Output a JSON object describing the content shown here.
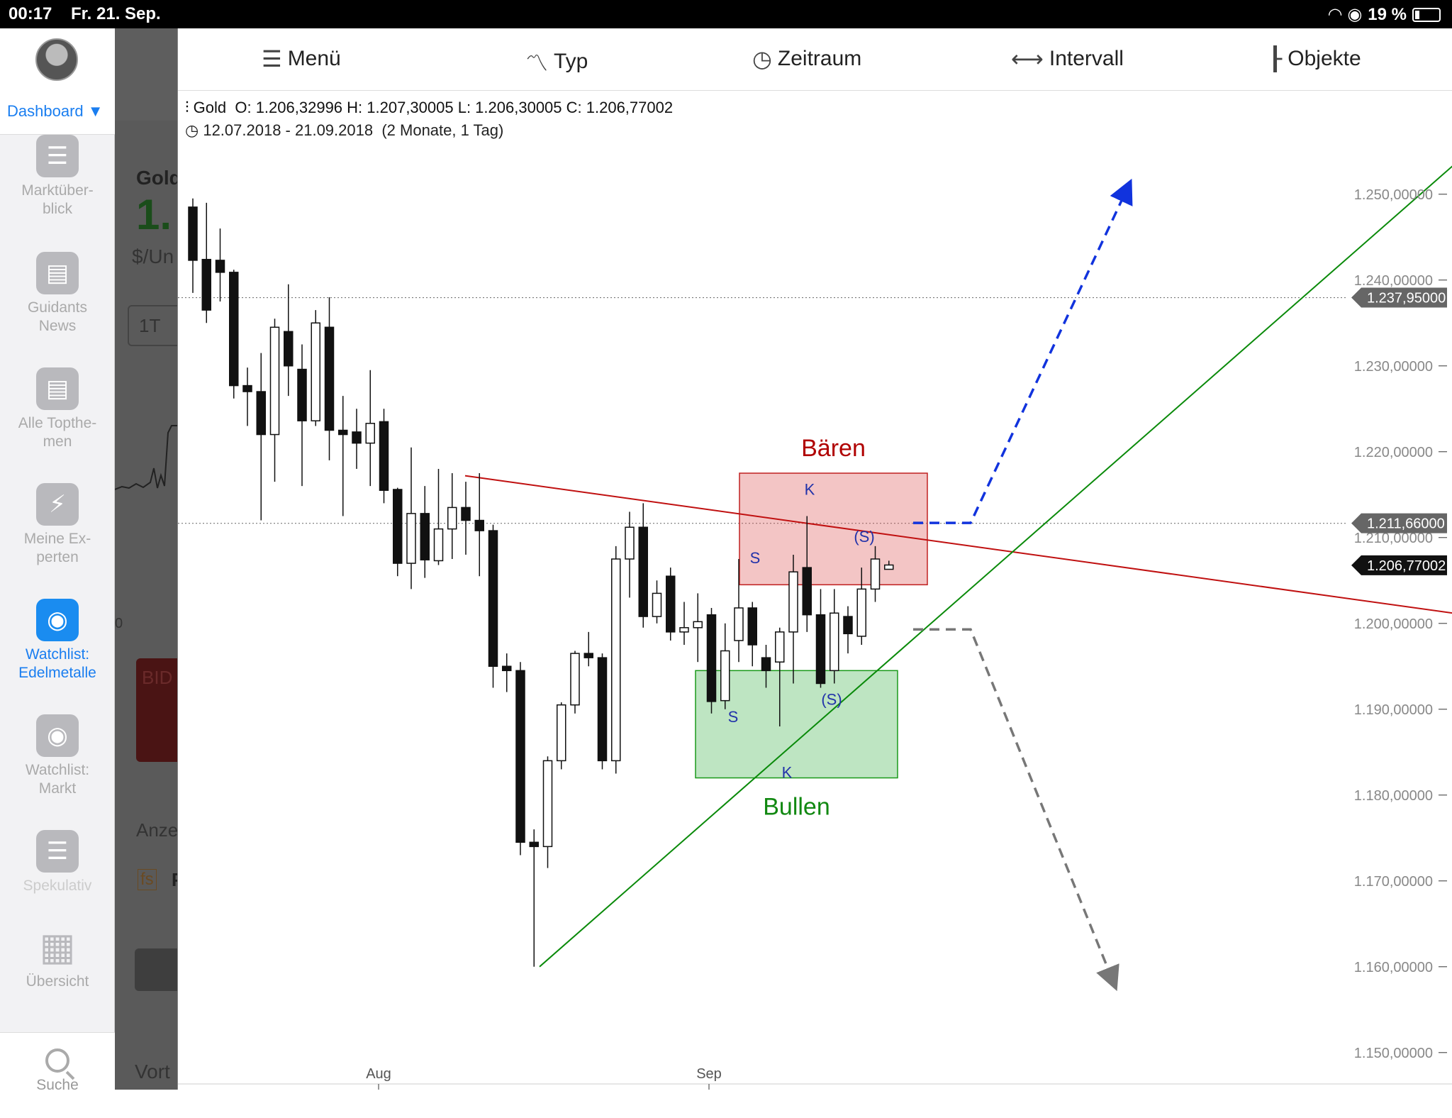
{
  "status": {
    "time": "00:17",
    "date": "Fr. 21. Sep.",
    "battery": "19 %"
  },
  "sidebar": {
    "dashboard": "Dashboard ▼",
    "items": [
      {
        "label1": "Marktüber-",
        "label2": "blick"
      },
      {
        "label1": "Guidants",
        "label2": "News"
      },
      {
        "label1": "Alle Topthe-",
        "label2": "men"
      },
      {
        "label1": "Meine Ex-",
        "label2": "perten"
      },
      {
        "label1": "Watchlist:",
        "label2": "Edelmetalle"
      },
      {
        "label1": "Watchlist:",
        "label2": "Markt"
      },
      {
        "label1": "Spekulativ",
        "label2": ""
      },
      {
        "label1": "Übersicht",
        "label2": ""
      }
    ],
    "search": "Suche"
  },
  "behind": {
    "title": "Gold",
    "price": "1.",
    "unit": "$/Un",
    "range_btn": "1T",
    "bid": "BID",
    "anz": "Anze",
    "fs": "fs",
    "p": "P",
    "vort": "Vort",
    "zero": "0"
  },
  "toolbar": {
    "menu": "Menü",
    "type": "Typ",
    "period": "Zeitraum",
    "interval": "Intervall",
    "objects": "Objekte"
  },
  "info": {
    "name": "Gold",
    "ohlc": "O: 1.206,32996  H: 1.207,30005  L: 1.206,30005  C: 1.206,77002",
    "range": "12.07.2018 - 21.09.2018",
    "duration": "(2 Monate, 1 Tag)"
  },
  "chart_data": {
    "type": "candlestick",
    "x_labels": [
      "Aug",
      "Sep"
    ],
    "y_ticks": [
      "1.250,00000",
      "1.240,00000",
      "1.230,00000",
      "1.220,00000",
      "1.210,00000",
      "1.200,00000",
      "1.190,00000",
      "1.180,00000",
      "1.170,00000",
      "1.160,00000",
      "1.150,00000"
    ],
    "y_values": [
      1250,
      1240,
      1230,
      1220,
      1210,
      1200,
      1190,
      1180,
      1170,
      1160,
      1150
    ],
    "price_tags": [
      {
        "label": "1.237,95000",
        "value": 1237.95,
        "style": "gray"
      },
      {
        "label": "1.211,66000",
        "value": 1211.66,
        "style": "gray"
      },
      {
        "label": "1.206,77002",
        "value": 1206.77,
        "style": "black"
      }
    ],
    "zones": [
      {
        "label": "Bären",
        "color": "#b00000",
        "low": 1204.5,
        "high": 1217.5
      },
      {
        "label": "Bullen",
        "color": "#118811",
        "low": 1182,
        "high": 1194.5
      }
    ],
    "annotations": [
      "S",
      "K",
      "(S)",
      "S",
      "(S)",
      "K"
    ],
    "candles": [
      [
        1248.5,
        1242.3,
        1249.5,
        1238.5
      ],
      [
        1242.4,
        1236.5,
        1249.0,
        1235.0
      ],
      [
        1242.3,
        1240.9,
        1246.0,
        1237.5
      ],
      [
        1240.9,
        1227.7,
        1241.2,
        1226.2
      ],
      [
        1227.7,
        1227.0,
        1229.8,
        1223.0
      ],
      [
        1227.0,
        1222.0,
        1231.5,
        1212.0
      ],
      [
        1222.0,
        1234.5,
        1235.5,
        1216.5
      ],
      [
        1234.0,
        1230.0,
        1239.5,
        1226.5
      ],
      [
        1229.6,
        1223.6,
        1232.5,
        1216.0
      ],
      [
        1223.6,
        1235.0,
        1236.5,
        1223.0
      ],
      [
        1234.5,
        1222.5,
        1238.0,
        1219.0
      ],
      [
        1222.5,
        1222.0,
        1226.5,
        1212.5
      ],
      [
        1222.3,
        1221.0,
        1225.0,
        1218.0
      ],
      [
        1221.0,
        1223.3,
        1229.5,
        1216.0
      ],
      [
        1223.5,
        1215.5,
        1225.0,
        1214.0
      ],
      [
        1215.6,
        1207.0,
        1215.8,
        1205.5
      ],
      [
        1207.0,
        1212.8,
        1220.5,
        1204.0
      ],
      [
        1212.8,
        1207.4,
        1216.0,
        1205.3
      ],
      [
        1207.3,
        1211.0,
        1218.0,
        1206.8
      ],
      [
        1211.0,
        1213.5,
        1217.5,
        1207.5
      ],
      [
        1213.5,
        1212.0,
        1216.5,
        1208.0
      ],
      [
        1212.0,
        1210.8,
        1217.5,
        1205.5
      ],
      [
        1210.8,
        1195.0,
        1211.5,
        1192.5
      ],
      [
        1195.0,
        1194.5,
        1196.5,
        1192.0
      ],
      [
        1194.5,
        1174.5,
        1195.5,
        1173.0
      ],
      [
        1174.5,
        1174.0,
        1176.0,
        1160.0
      ],
      [
        1174.0,
        1184.0,
        1184.5,
        1171.5
      ],
      [
        1184.0,
        1190.5,
        1190.8,
        1183.0
      ],
      [
        1190.5,
        1196.5,
        1196.8,
        1189.5
      ],
      [
        1196.5,
        1196.0,
        1199.0,
        1195.0
      ],
      [
        1196.0,
        1184.0,
        1196.5,
        1183.0
      ],
      [
        1184.0,
        1207.5,
        1209.0,
        1182.5
      ],
      [
        1207.5,
        1211.2,
        1213.0,
        1203.0
      ],
      [
        1211.2,
        1200.8,
        1214.0,
        1199.5
      ],
      [
        1200.8,
        1203.5,
        1205.0,
        1200.0
      ],
      [
        1205.5,
        1199.0,
        1206.5,
        1198.0
      ],
      [
        1199.0,
        1199.5,
        1202.5,
        1197.5
      ],
      [
        1199.5,
        1200.2,
        1203.5,
        1195.5
      ],
      [
        1201.0,
        1190.9,
        1201.8,
        1189.5
      ],
      [
        1191.0,
        1196.8,
        1200.0,
        1190.0
      ],
      [
        1198.0,
        1201.8,
        1207.5,
        1195.5
      ],
      [
        1201.8,
        1197.5,
        1202.5,
        1195.0
      ],
      [
        1196.0,
        1194.5,
        1197.5,
        1192.5
      ],
      [
        1195.5,
        1199.0,
        1199.5,
        1188.0
      ],
      [
        1199.0,
        1206.0,
        1208.0,
        1193.0
      ],
      [
        1206.5,
        1201.0,
        1212.5,
        1199.0
      ],
      [
        1201.0,
        1193.0,
        1204.0,
        1192.5
      ],
      [
        1194.5,
        1201.2,
        1204.0,
        1193.0
      ],
      [
        1200.8,
        1198.8,
        1202.0,
        1196.5
      ],
      [
        1198.5,
        1204.0,
        1206.5,
        1197.5
      ],
      [
        1204.0,
        1207.5,
        1209.0,
        1202.5
      ],
      [
        1206.3,
        1206.8,
        1207.3,
        1206.3
      ]
    ]
  }
}
